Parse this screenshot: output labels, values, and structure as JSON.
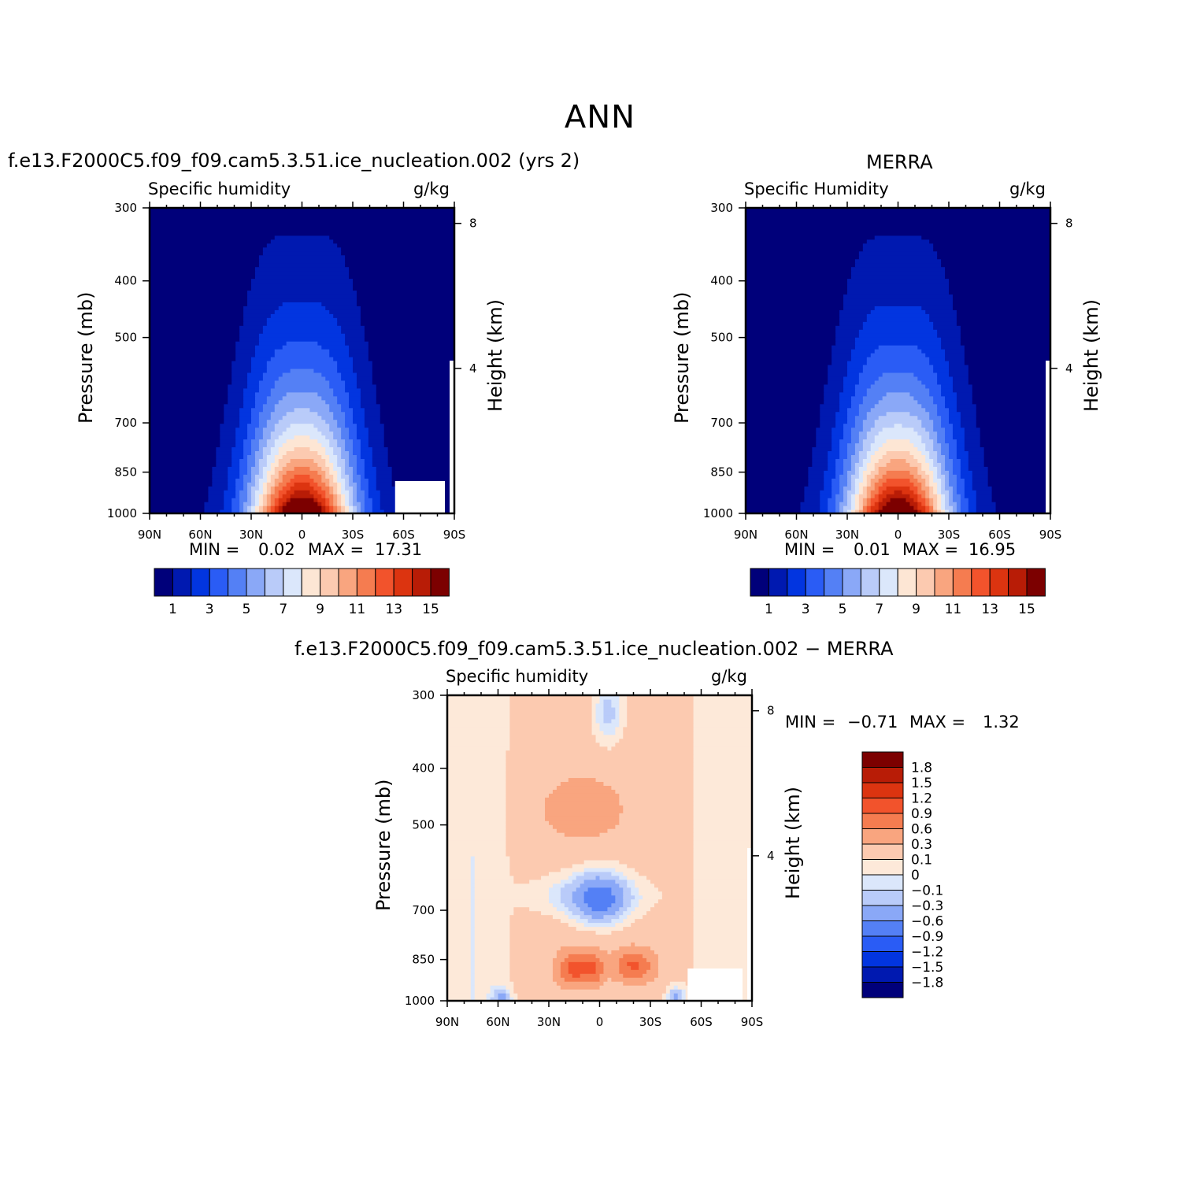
{
  "page_title": "ANN",
  "chart_data": [
    {
      "type": "heatmap",
      "id": "model",
      "title": "f.e13.F2000C5.f09_f09.cam5.3.51.ice_nucleation.002 (yrs 2)",
      "variable": "Specific humidity",
      "units": "g/kg",
      "xlabel": "",
      "ylabel": "Pressure (mb)",
      "y2label": "Height (km)",
      "x_ticks": [
        "90N",
        "60N",
        "30N",
        "0",
        "30S",
        "60S",
        "90S"
      ],
      "y_ticks": [
        "300",
        "400",
        "500",
        "700",
        "850",
        "1000"
      ],
      "y2_ticks": [
        "8",
        "4"
      ],
      "xlim": [
        90,
        -90
      ],
      "ylim": [
        1000,
        300
      ],
      "min_label": "MIN =",
      "min_value": "0.02",
      "max_label": "MAX =",
      "max_value": "17.31",
      "min": 0.02,
      "max": 17.31,
      "surface_peak_lat": 0,
      "contour_levels": [
        1,
        2,
        3,
        4,
        5,
        6,
        7,
        8,
        9,
        10,
        11,
        12,
        13,
        14,
        15
      ],
      "colorbar_labels": [
        "1",
        "3",
        "5",
        "7",
        "9",
        "11",
        "13",
        "15"
      ]
    },
    {
      "type": "heatmap",
      "id": "obs",
      "title": "MERRA",
      "variable": "Specific Humidity",
      "units": "g/kg",
      "xlabel": "",
      "ylabel": "Pressure (mb)",
      "y2label": "Height (km)",
      "x_ticks": [
        "90N",
        "60N",
        "30N",
        "0",
        "30S",
        "60S",
        "90S"
      ],
      "y_ticks": [
        "300",
        "400",
        "500",
        "700",
        "850",
        "1000"
      ],
      "y2_ticks": [
        "8",
        "4"
      ],
      "xlim": [
        90,
        -90
      ],
      "ylim": [
        1000,
        300
      ],
      "min_label": "MIN =",
      "min_value": "0.01",
      "max_label": "MAX =",
      "max_value": "16.95",
      "min": 0.01,
      "max": 16.95,
      "surface_peak_lat": 0,
      "contour_levels": [
        1,
        2,
        3,
        4,
        5,
        6,
        7,
        8,
        9,
        10,
        11,
        12,
        13,
        14,
        15
      ],
      "colorbar_labels": [
        "1",
        "3",
        "5",
        "7",
        "9",
        "11",
        "13",
        "15"
      ]
    },
    {
      "type": "heatmap",
      "id": "diff",
      "title": "f.e13.F2000C5.f09_f09.cam5.3.51.ice_nucleation.002 − MERRA",
      "variable": "Specific humidity",
      "units": "g/kg",
      "xlabel": "",
      "ylabel": "Pressure (mb)",
      "y2label": "Height (km)",
      "x_ticks": [
        "90N",
        "60N",
        "30N",
        "0",
        "30S",
        "60S",
        "90S"
      ],
      "y_ticks": [
        "300",
        "400",
        "500",
        "700",
        "850",
        "1000"
      ],
      "y2_ticks": [
        "8",
        "4"
      ],
      "xlim": [
        90,
        -90
      ],
      "ylim": [
        1000,
        300
      ],
      "min_label": "MIN =",
      "min_value": "−0.71",
      "max_label": "MAX =",
      "max_value": "1.32",
      "min": -0.71,
      "max": 1.32,
      "contour_levels": [
        -1.8,
        -1.5,
        -1.2,
        -0.9,
        -0.6,
        -0.3,
        -0.1,
        0,
        0.1,
        0.3,
        0.6,
        0.9,
        1.2,
        1.5,
        1.8
      ],
      "colorbar_labels": [
        "1.8",
        "1.5",
        "1.2",
        "0.9",
        "0.6",
        "0.3",
        "0.1",
        "0",
        "−0.1",
        "−0.3",
        "−0.6",
        "−0.9",
        "−1.2",
        "−1.5",
        "−1.8"
      ]
    }
  ],
  "colors": {
    "palette": [
      "#00007a",
      "#0019b0",
      "#0235e0",
      "#2a5cf5",
      "#5480f5",
      "#8aa8f7",
      "#b9cbf9",
      "#dbe7fb",
      "#fde6d4",
      "#fccab0",
      "#f9a57f",
      "#f57c50",
      "#f2532c",
      "#dc3410",
      "#b81c06",
      "#7c0000"
    ],
    "diff_palette": [
      "#00007a",
      "#0019b0",
      "#0235e0",
      "#2a5cf5",
      "#5480f5",
      "#8aa8f7",
      "#b9cbf9",
      "#dbe7fb",
      "#fde9d9",
      "#fccab0",
      "#f9a57f",
      "#f57c50",
      "#f2532c",
      "#dc3410",
      "#b81c06",
      "#7c0000"
    ]
  }
}
